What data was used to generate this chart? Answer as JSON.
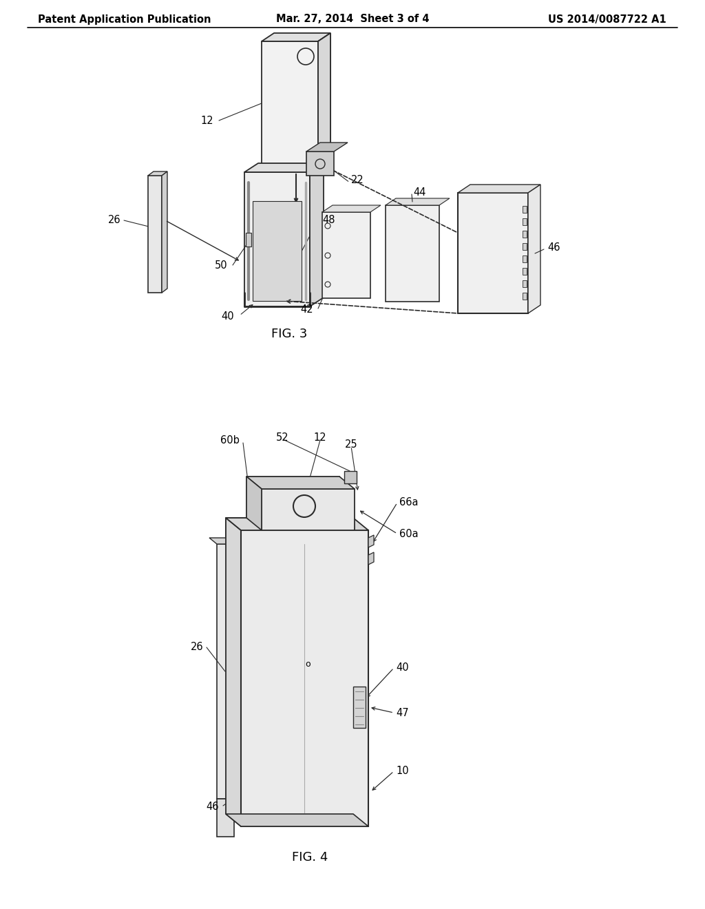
{
  "background_color": "#ffffff",
  "header_left": "Patent Application Publication",
  "header_center": "Mar. 27, 2014  Sheet 3 of 4",
  "header_right": "US 2014/0087722 A1",
  "line_color": "#2a2a2a",
  "line_width": 1.3,
  "label_fontsize": 10.5
}
